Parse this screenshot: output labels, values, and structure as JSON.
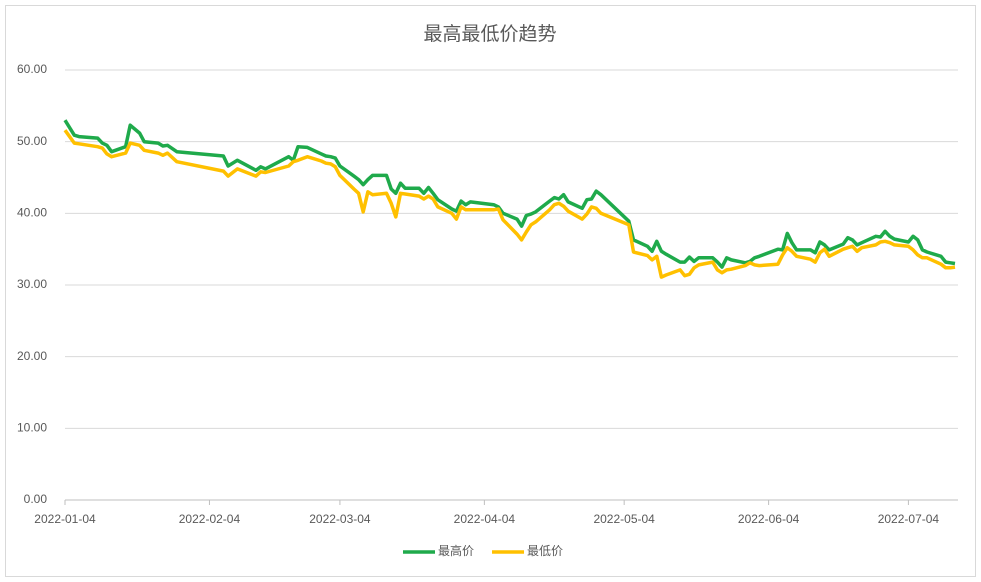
{
  "chart_data": {
    "type": "line",
    "title": "最高最低价趋势",
    "x": [
      "2022-01-04",
      "2022-01-06",
      "2022-01-07",
      "2022-01-11",
      "2022-01-12",
      "2022-01-13",
      "2022-01-14",
      "2022-01-17",
      "2022-01-18",
      "2022-01-20",
      "2022-01-21",
      "2022-01-24",
      "2022-01-25",
      "2022-01-26",
      "2022-01-28",
      "2022-02-07",
      "2022-02-08",
      "2022-02-10",
      "2022-02-14",
      "2022-02-15",
      "2022-02-16",
      "2022-02-21",
      "2022-02-22",
      "2022-02-23",
      "2022-02-25",
      "2022-02-28",
      "2022-03-01",
      "2022-03-02",
      "2022-03-03",
      "2022-03-04",
      "2022-03-07",
      "2022-03-08",
      "2022-03-09",
      "2022-03-10",
      "2022-03-11",
      "2022-03-14",
      "2022-03-15",
      "2022-03-16",
      "2022-03-17",
      "2022-03-18",
      "2022-03-21",
      "2022-03-22",
      "2022-03-23",
      "2022-03-24",
      "2022-03-25",
      "2022-03-28",
      "2022-03-29",
      "2022-03-30",
      "2022-03-31",
      "2022-04-01",
      "2022-04-06",
      "2022-04-07",
      "2022-04-08",
      "2022-04-11",
      "2022-04-12",
      "2022-04-13",
      "2022-04-14",
      "2022-04-15",
      "2022-04-18",
      "2022-04-19",
      "2022-04-20",
      "2022-04-21",
      "2022-04-22",
      "2022-04-25",
      "2022-04-26",
      "2022-04-27",
      "2022-04-28",
      "2022-04-29",
      "2022-05-05",
      "2022-05-06",
      "2022-05-09",
      "2022-05-10",
      "2022-05-11",
      "2022-05-12",
      "2022-05-13",
      "2022-05-16",
      "2022-05-17",
      "2022-05-18",
      "2022-05-19",
      "2022-05-20",
      "2022-05-23",
      "2022-05-24",
      "2022-05-25",
      "2022-05-26",
      "2022-05-27",
      "2022-05-30",
      "2022-05-31",
      "2022-06-01",
      "2022-06-02",
      "2022-06-06",
      "2022-06-07",
      "2022-06-08",
      "2022-06-09",
      "2022-06-10",
      "2022-06-13",
      "2022-06-14",
      "2022-06-15",
      "2022-06-16",
      "2022-06-17",
      "2022-06-20",
      "2022-06-21",
      "2022-06-22",
      "2022-06-23",
      "2022-06-24",
      "2022-06-27",
      "2022-06-28",
      "2022-06-29",
      "2022-06-30",
      "2022-07-01",
      "2022-07-04",
      "2022-07-05",
      "2022-07-06",
      "2022-07-07",
      "2022-07-08",
      "2022-07-11",
      "2022-07-12",
      "2022-07-13",
      "2022-07-14"
    ],
    "series": [
      {
        "name": "最高价",
        "color": "#1faa4b",
        "values": [
          53.0,
          50.9,
          50.7,
          50.5,
          49.8,
          49.5,
          48.6,
          49.3,
          52.3,
          51.2,
          50.0,
          49.8,
          49.4,
          49.5,
          48.6,
          48.0,
          46.6,
          47.4,
          46.0,
          46.5,
          46.2,
          47.9,
          47.4,
          49.3,
          49.2,
          48.3,
          48.0,
          47.9,
          47.7,
          46.6,
          45.2,
          44.7,
          44.0,
          44.7,
          45.3,
          45.3,
          43.4,
          42.8,
          44.2,
          43.5,
          43.5,
          42.8,
          43.6,
          42.8,
          41.9,
          40.6,
          40.3,
          41.7,
          41.2,
          41.6,
          41.2,
          40.9,
          40.0,
          39.2,
          38.2,
          39.7,
          39.9,
          40.2,
          41.7,
          42.2,
          42.0,
          42.6,
          41.6,
          40.7,
          41.9,
          42.0,
          43.1,
          42.6,
          38.9,
          36.3,
          35.4,
          34.7,
          36.1,
          34.7,
          34.3,
          33.2,
          33.2,
          33.9,
          33.3,
          33.8,
          33.8,
          33.2,
          32.5,
          33.8,
          33.5,
          33.1,
          33.3,
          33.8,
          34.0,
          35.0,
          34.9,
          37.2,
          35.9,
          34.9,
          34.9,
          34.5,
          36.0,
          35.6,
          34.9,
          35.7,
          36.6,
          36.3,
          35.6,
          35.9,
          36.8,
          36.7,
          37.5,
          36.8,
          36.4,
          36.0,
          36.8,
          36.3,
          34.9,
          34.6,
          34.0,
          33.2,
          33.1,
          33.0
        ]
      },
      {
        "name": "最低价",
        "color": "#ffc000",
        "values": [
          51.6,
          49.8,
          49.7,
          49.3,
          49.1,
          48.3,
          47.9,
          48.4,
          49.8,
          49.5,
          48.8,
          48.4,
          48.1,
          48.4,
          47.2,
          45.9,
          45.2,
          46.2,
          45.2,
          45.8,
          45.7,
          46.6,
          47.2,
          47.4,
          47.9,
          47.3,
          47.0,
          46.9,
          46.5,
          45.3,
          43.4,
          42.8,
          40.2,
          43.0,
          42.6,
          42.8,
          41.4,
          39.5,
          42.8,
          42.7,
          42.4,
          42.0,
          42.4,
          42.0,
          40.9,
          40.0,
          39.2,
          40.9,
          40.5,
          40.5,
          40.5,
          40.6,
          39.1,
          37.1,
          36.3,
          37.4,
          38.4,
          38.8,
          40.5,
          41.2,
          41.4,
          41.0,
          40.3,
          39.2,
          39.9,
          40.9,
          40.7,
          40.0,
          38.4,
          34.6,
          34.1,
          33.5,
          34.0,
          31.1,
          31.4,
          32.1,
          31.3,
          31.5,
          32.4,
          32.8,
          33.2,
          32.1,
          31.7,
          32.1,
          32.2,
          32.7,
          33.1,
          32.8,
          32.7,
          32.9,
          34.2,
          35.2,
          34.7,
          34.0,
          33.6,
          33.2,
          34.5,
          35.0,
          34.0,
          35.0,
          35.2,
          35.4,
          34.7,
          35.2,
          35.6,
          36.0,
          36.1,
          35.9,
          35.6,
          35.4,
          34.9,
          34.2,
          33.8,
          33.8,
          32.9,
          32.4,
          32.4,
          32.5
        ]
      }
    ],
    "xlim": [
      "2022-01-04",
      "2022-07-14"
    ],
    "xticks": [
      "2022-01-04",
      "2022-02-04",
      "2022-03-04",
      "2022-04-04",
      "2022-05-04",
      "2022-06-04",
      "2022-07-04"
    ],
    "ylim": [
      0,
      60
    ],
    "yticks": [
      {
        "value": 0,
        "label": "0.00"
      },
      {
        "value": 10,
        "label": "10.00"
      },
      {
        "value": 20,
        "label": "20.00"
      },
      {
        "value": 30,
        "label": "30.00"
      },
      {
        "value": 40,
        "label": "40.00"
      },
      {
        "value": 50,
        "label": "50.00"
      },
      {
        "value": 60,
        "label": "60.00"
      }
    ],
    "grid": true,
    "legend": "bottom"
  }
}
